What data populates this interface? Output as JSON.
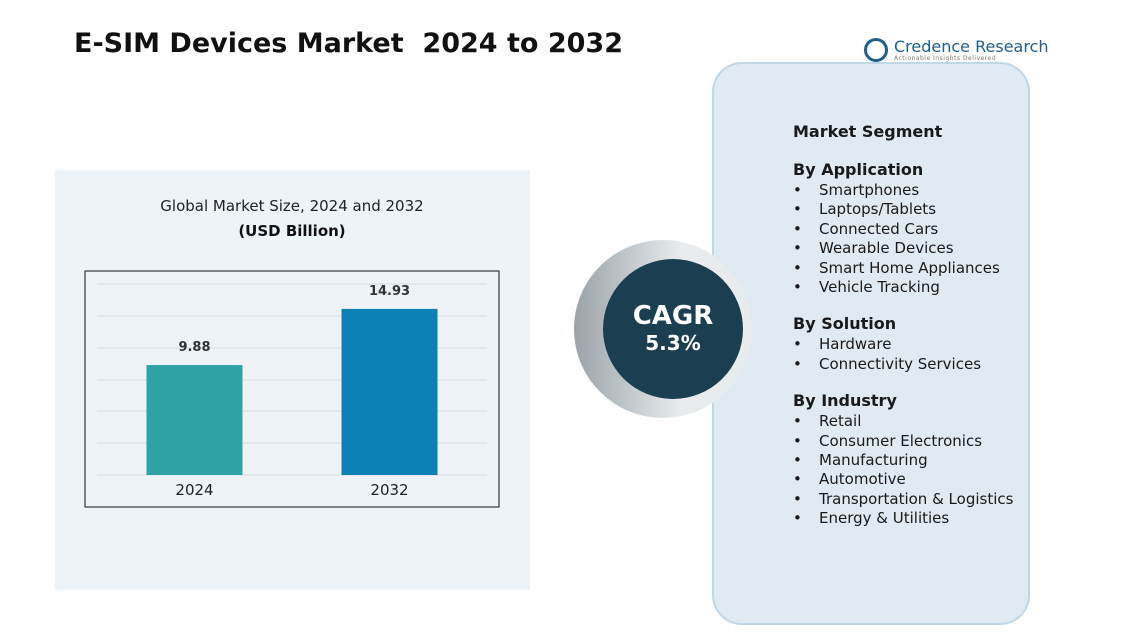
{
  "header": {
    "title": "E-SIM Devices Market  2024 to 2032",
    "brand": "Credence Research",
    "tagline": "Actionable Insights Delivered"
  },
  "chart_data": {
    "type": "bar",
    "title": "Global Market Size, 2024 and 2032",
    "subtitle": "(USD Billion)",
    "categories": [
      "2024",
      "2032"
    ],
    "values": [
      9.88,
      14.93
    ],
    "colors": [
      "#2fa3a3",
      "#0a80b4"
    ],
    "ylim": [
      0,
      16
    ]
  },
  "cagr": {
    "label": "CAGR",
    "value": "5.3%"
  },
  "segments": {
    "title": "Market Segment",
    "groups": [
      {
        "title": "By Application",
        "items": [
          "Smartphones",
          "Laptops/Tablets",
          "Connected Cars",
          "Wearable Devices",
          "Smart Home Appliances",
          "Vehicle Tracking"
        ]
      },
      {
        "title": "By Solution",
        "items": [
          "Hardware",
          "Connectivity Services"
        ]
      },
      {
        "title": "By Industry",
        "items": [
          "Retail",
          "Consumer Electronics",
          "Manufacturing",
          "Automotive",
          "Transportation & Logistics",
          "Energy & Utilities"
        ]
      }
    ]
  }
}
